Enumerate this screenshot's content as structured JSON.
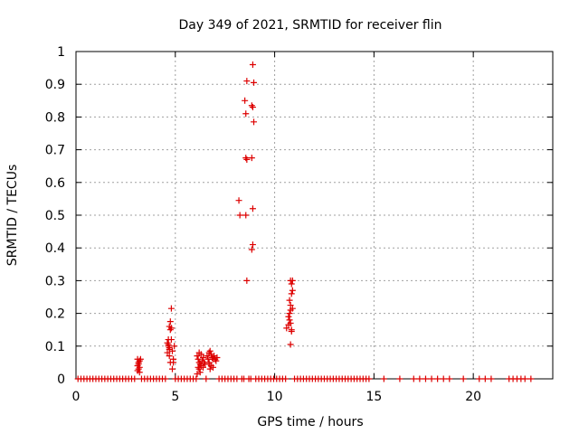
{
  "chart_data": {
    "type": "scatter",
    "title": "Day 349 of 2021, SRMTID for receiver flin",
    "xlabel": "GPS time / hours",
    "ylabel": "SRMTID / TECUs",
    "xlim": [
      0,
      24
    ],
    "ylim": [
      0,
      1
    ],
    "xticks": [
      0,
      5,
      10,
      15,
      20
    ],
    "yticks": [
      0,
      0.1,
      0.2,
      0.3,
      0.4,
      0.5,
      0.6,
      0.7,
      0.8,
      0.9,
      1
    ],
    "grid": true,
    "marker": "+",
    "color": "#dd0000",
    "points": [
      [
        3.1,
        0.06
      ],
      [
        3.15,
        0.05
      ],
      [
        3.2,
        0.055
      ],
      [
        3.1,
        0.04
      ],
      [
        3.2,
        0.035
      ],
      [
        3.15,
        0.03
      ],
      [
        3.1,
        0.025
      ],
      [
        3.2,
        0.02
      ],
      [
        3.15,
        0.045
      ],
      [
        3.25,
        0.06
      ],
      [
        4.6,
        0.11
      ],
      [
        4.65,
        0.1
      ],
      [
        4.7,
        0.09
      ],
      [
        4.6,
        0.08
      ],
      [
        4.75,
        0.15
      ],
      [
        4.7,
        0.16
      ],
      [
        4.75,
        0.175
      ],
      [
        4.8,
        0.215
      ],
      [
        4.65,
        0.12
      ],
      [
        4.7,
        0.07
      ],
      [
        4.75,
        0.05
      ],
      [
        4.9,
        0.05
      ],
      [
        4.85,
        0.03
      ],
      [
        4.95,
        0.1
      ],
      [
        4.85,
        0.085
      ],
      [
        4.8,
        0.12
      ],
      [
        4.9,
        0.06
      ],
      [
        4.7,
        0.095
      ],
      [
        4.8,
        0.155
      ],
      [
        4.65,
        0.105
      ],
      [
        6.1,
        0.07
      ],
      [
        6.15,
        0.06
      ],
      [
        6.2,
        0.05
      ],
      [
        6.25,
        0.045
      ],
      [
        6.3,
        0.04
      ],
      [
        6.35,
        0.055
      ],
      [
        6.4,
        0.065
      ],
      [
        6.2,
        0.03
      ],
      [
        6.25,
        0.02
      ],
      [
        6.15,
        0.035
      ],
      [
        6.3,
        0.075
      ],
      [
        6.45,
        0.05
      ],
      [
        6.1,
        0.015
      ],
      [
        6.4,
        0.035
      ],
      [
        6.5,
        0.045
      ],
      [
        6.2,
        0.08
      ],
      [
        6.6,
        0.07
      ],
      [
        6.7,
        0.08
      ],
      [
        6.75,
        0.085
      ],
      [
        6.8,
        0.075
      ],
      [
        6.65,
        0.06
      ],
      [
        6.7,
        0.05
      ],
      [
        6.8,
        0.04
      ],
      [
        6.75,
        0.03
      ],
      [
        6.85,
        0.065
      ],
      [
        6.9,
        0.06
      ],
      [
        7.0,
        0.06
      ],
      [
        7.1,
        0.065
      ],
      [
        7.05,
        0.055
      ],
      [
        6.95,
        0.07
      ],
      [
        6.7,
        0.045
      ],
      [
        6.9,
        0.035
      ],
      [
        8.2,
        0.545
      ],
      [
        8.25,
        0.5
      ],
      [
        8.55,
        0.5
      ],
      [
        8.6,
        0.3
      ],
      [
        8.5,
        0.85
      ],
      [
        8.55,
        0.81
      ],
      [
        8.6,
        0.91
      ],
      [
        8.55,
        0.675
      ],
      [
        8.6,
        0.67
      ],
      [
        8.9,
        0.96
      ],
      [
        8.95,
        0.905
      ],
      [
        8.85,
        0.835
      ],
      [
        8.9,
        0.83
      ],
      [
        8.95,
        0.785
      ],
      [
        8.85,
        0.675
      ],
      [
        8.9,
        0.52
      ],
      [
        8.9,
        0.41
      ],
      [
        8.85,
        0.395
      ],
      [
        10.6,
        0.155
      ],
      [
        10.7,
        0.165
      ],
      [
        10.75,
        0.2
      ],
      [
        10.8,
        0.225
      ],
      [
        10.85,
        0.26
      ],
      [
        10.8,
        0.3
      ],
      [
        10.85,
        0.29
      ],
      [
        10.9,
        0.3
      ],
      [
        10.75,
        0.18
      ],
      [
        10.8,
        0.17
      ],
      [
        10.85,
        0.15
      ],
      [
        10.9,
        0.215
      ],
      [
        10.8,
        0.105
      ],
      [
        10.75,
        0.24
      ],
      [
        10.9,
        0.27
      ],
      [
        10.7,
        0.19
      ],
      [
        10.8,
        0.21
      ],
      [
        10.85,
        0.145
      ]
    ],
    "zero_points": [
      0.1,
      0.25,
      0.4,
      0.55,
      0.7,
      0.85,
      1.0,
      1.15,
      1.3,
      1.45,
      1.6,
      1.75,
      1.9,
      2.05,
      2.2,
      2.35,
      2.5,
      2.65,
      2.8,
      2.95,
      3.3,
      3.45,
      3.6,
      3.75,
      3.9,
      4.05,
      4.2,
      4.35,
      4.5,
      5.0,
      5.15,
      5.3,
      5.45,
      5.6,
      5.75,
      5.9,
      6.05,
      6.55,
      7.2,
      7.35,
      7.5,
      7.65,
      7.8,
      7.95,
      8.1,
      8.35,
      8.45,
      8.7,
      8.8,
      9.05,
      9.2,
      9.35,
      9.5,
      9.65,
      9.8,
      9.95,
      10.1,
      10.25,
      10.4,
      10.55,
      11.0,
      11.15,
      11.3,
      11.45,
      11.6,
      11.75,
      11.9,
      12.05,
      12.2,
      12.35,
      12.5,
      12.65,
      12.8,
      12.95,
      13.1,
      13.25,
      13.4,
      13.55,
      13.7,
      13.85,
      14.0,
      14.15,
      14.3,
      14.45,
      14.6,
      14.75,
      15.5,
      16.3,
      17.0,
      17.3,
      17.6,
      17.9,
      18.2,
      18.5,
      18.8,
      19.5,
      20.3,
      20.6,
      20.9,
      21.8,
      22.0,
      22.2,
      22.4,
      22.6,
      22.9
    ]
  }
}
